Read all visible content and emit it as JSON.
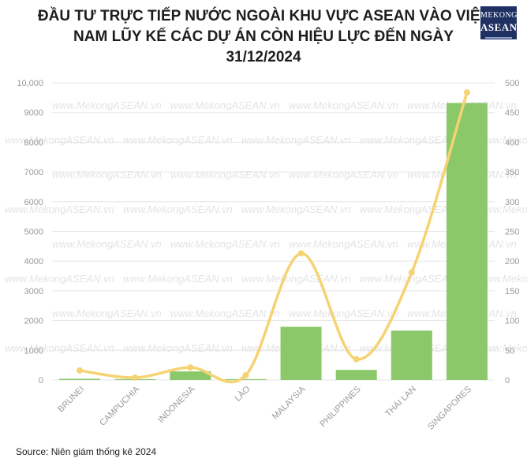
{
  "chart_data": {
    "type": "bar",
    "title_lines": [
      "ĐẦU TƯ TRỰC TIẾP NƯỚC NGOÀI KHU VỰC ASEAN VÀO VIỆT",
      "NAM LŨY KẾ CÁC DỰ ÁN CÒN HIỆU LỰC ĐẾN NGÀY",
      "31/12/2024"
    ],
    "categories": [
      "BRUNEI",
      "CAMPUCHIA",
      "INDONESIA",
      "LÀO",
      "MALAYSIA",
      "PHILIPPINES",
      "THÁI LAN",
      "SINGAPORES"
    ],
    "series": [
      {
        "type": "bar",
        "axis": "left",
        "values": [
          40,
          30,
          290,
          30,
          1790,
          340,
          1660,
          9320
        ]
      },
      {
        "type": "line",
        "axis": "right",
        "values": [
          16,
          4,
          21,
          8,
          213,
          35,
          181,
          484
        ]
      }
    ],
    "left_axis": {
      "ylim": [
        0,
        10000
      ],
      "ticks": [
        "0",
        "1000",
        "2000",
        "3000",
        "4000",
        "5000",
        "6000",
        "7000",
        "8000",
        "9000",
        "10,000"
      ]
    },
    "right_axis": {
      "ylim": [
        0,
        500
      ],
      "ticks": [
        "0",
        "50",
        "100",
        "150",
        "200",
        "250",
        "300",
        "350",
        "400",
        "450",
        "500"
      ]
    },
    "grid": true,
    "watermark": "www.MekongASEAN.vn",
    "colors": {
      "bar": "#8bc86a",
      "line": "#f5d372",
      "grid": "#e6e6e6",
      "tick_text": "#9a9a9a"
    }
  },
  "logo": {
    "line1": "MEKONG",
    "line2": "ASEAN"
  },
  "source": "Source: Niên giám thống kê 2024"
}
